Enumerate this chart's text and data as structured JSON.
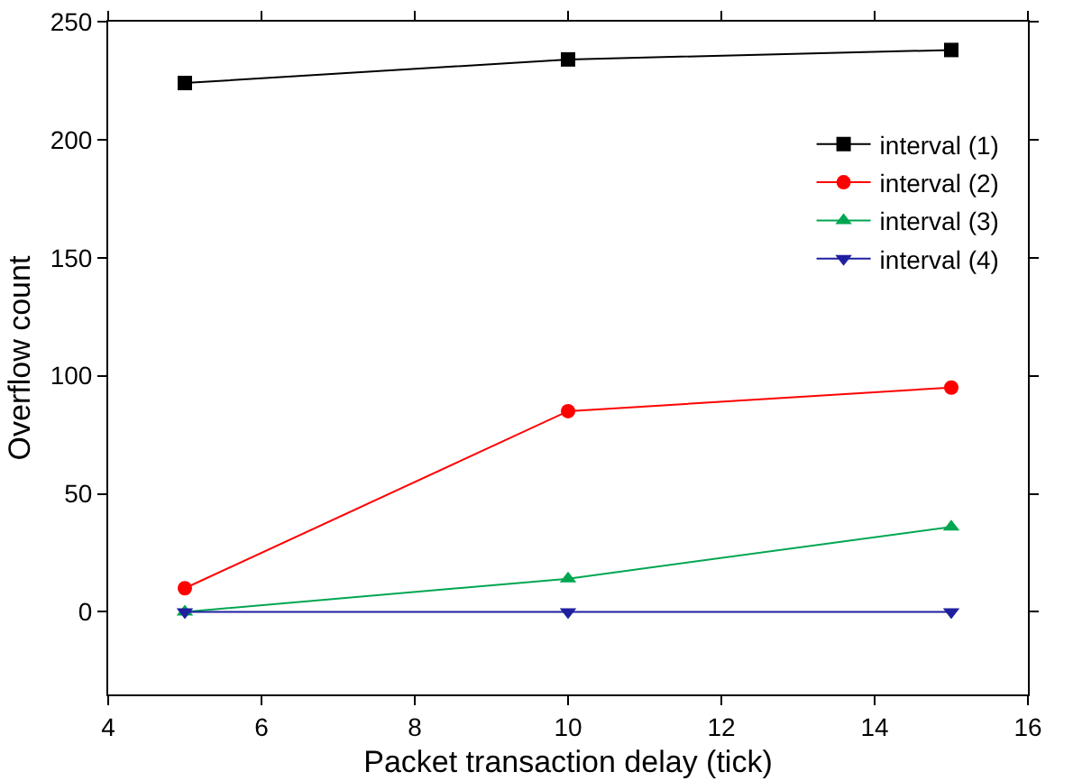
{
  "chart_data": {
    "type": "line",
    "xlabel": "Packet transaction delay (tick)",
    "ylabel": "Overflow count",
    "x": [
      5,
      10,
      15
    ],
    "series": [
      {
        "name": "interval (1)",
        "color": "#000000",
        "marker": "square",
        "values": [
          224,
          234,
          238
        ]
      },
      {
        "name": "interval (2)",
        "color": "#ff0000",
        "marker": "circle",
        "values": [
          10,
          85,
          95
        ]
      },
      {
        "name": "interval (3)",
        "color": "#00a651",
        "marker": "triangle",
        "values": [
          0,
          14,
          36
        ]
      },
      {
        "name": "interval (4)",
        "color": "#1f1fa0",
        "marker": "triangle-down",
        "values": [
          0,
          0,
          0
        ]
      }
    ],
    "xlim": [
      4,
      16
    ],
    "xticks": [
      4,
      6,
      8,
      10,
      12,
      14,
      16
    ],
    "ylim": [
      -35,
      250
    ],
    "yticks": [
      0,
      50,
      100,
      150,
      200,
      250
    ],
    "grid": false,
    "legend": "top right",
    "line_style": "solid"
  }
}
